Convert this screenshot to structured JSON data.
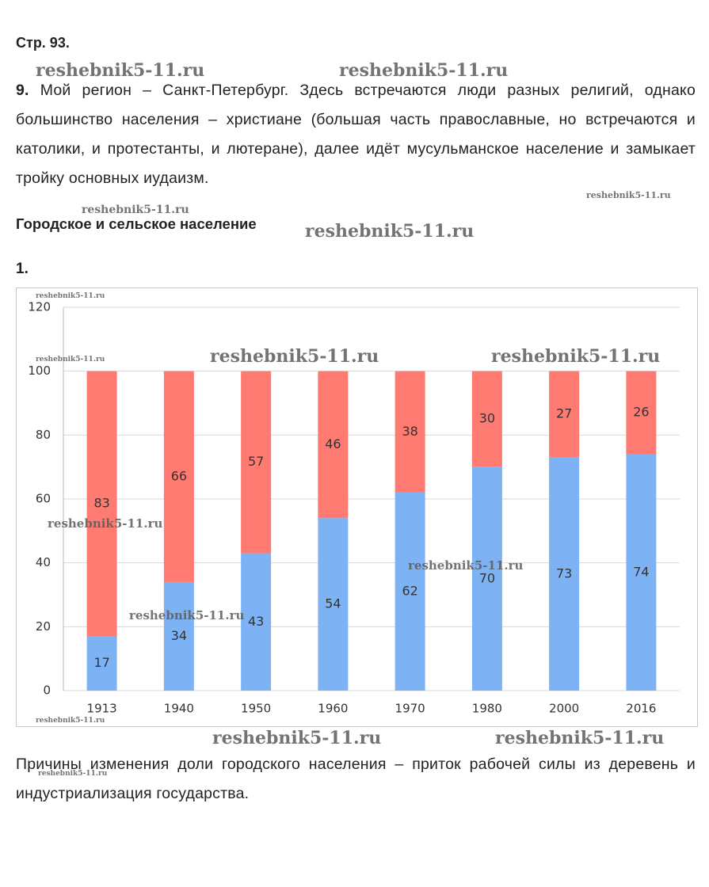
{
  "header": {
    "page": "Стр. 93."
  },
  "task9": {
    "number": "9.",
    "text": "Мой регион – Санкт-Петербург. Здесь встречаются люди разных религий, однако большинство населения – христиане (большая часть православные, но встречаются и католики, и протестанты, и лютеране), далее идёт мусульманское население и замыкает тройку основных иудаизм."
  },
  "section": {
    "title": "Городское и сельское население"
  },
  "task1": {
    "number": "1."
  },
  "chart_data": {
    "type": "stacked-bar",
    "categories": [
      "1913",
      "1940",
      "1950",
      "1960",
      "1970",
      "1980",
      "2000",
      "2016"
    ],
    "series": [
      {
        "color": "#7db3f5",
        "values": [
          17,
          34,
          43,
          54,
          62,
          70,
          73,
          74
        ]
      },
      {
        "color": "#ff7b72",
        "values": [
          83,
          66,
          57,
          46,
          38,
          30,
          27,
          26
        ]
      }
    ],
    "ylim": [
      0,
      120
    ],
    "yticks": [
      0,
      20,
      40,
      60,
      80,
      100,
      120
    ],
    "grid": true
  },
  "conclusion": "Причины изменения доли городского населения – приток рабочей силы из деревень и индустриализация государства.",
  "watermarks": [
    "reshebnik5-11.ru",
    "reshebnik5-11.ru",
    "reshebnik5-11.ru",
    "reshebnik5-11.ru",
    "reshebnik5-11.ru",
    "reshebnik5-11.ru",
    "reshebnik5-11.ru",
    "reshebnik5-11.ru",
    "reshebnik5-11.ru",
    "reshebnik5-11.ru",
    "reshebnik5-11.ru",
    "reshebnik5-11.ru",
    "reshebnik5-11.ru",
    "reshebnik5-11.ru",
    "reshebnik5-11.ru",
    "reshebnik5-11.ru"
  ]
}
